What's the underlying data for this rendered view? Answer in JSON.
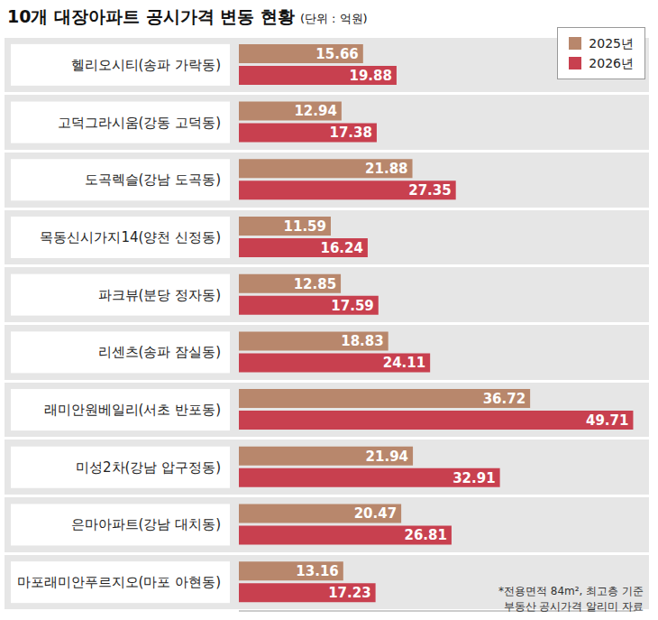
{
  "chart_data": {
    "type": "bar",
    "title": "10개 대장아파트 공시가격 변동 현황",
    "subtitle": "(단위 : 억원)",
    "orientation": "horizontal",
    "categories": [
      "헬리오시티(송파 가락동)",
      "고덕그라시움(강동 고덕동)",
      "도곡렉슬(강남 도곡동)",
      "목동신시가지14(양천 신정동)",
      "파크뷰(분당 정자동)",
      "리센츠(송파 잠실동)",
      "래미안원베일리(서초 반포동)",
      "미성2차(강남 압구정동)",
      "은마아파트(강남 대치동)",
      "마포래미안푸르지오(마포 아현동)"
    ],
    "series": [
      {
        "name": "2025년",
        "color": "#b8876c",
        "values": [
          15.66,
          12.94,
          21.88,
          11.59,
          12.85,
          18.83,
          36.72,
          21.94,
          20.47,
          13.16
        ]
      },
      {
        "name": "2026년",
        "color": "#c8404f",
        "values": [
          19.88,
          17.38,
          27.35,
          16.24,
          17.59,
          24.11,
          49.71,
          32.91,
          26.81,
          17.23
        ]
      }
    ],
    "xlim": [
      0,
      50
    ],
    "data_labels": true,
    "tick_labels": "y",
    "legend": "upper right",
    "grid": false,
    "annotations": [
      "*전용면적 84m², 최고층 기준",
      "부동산 공시가격 알리미 자료"
    ]
  }
}
